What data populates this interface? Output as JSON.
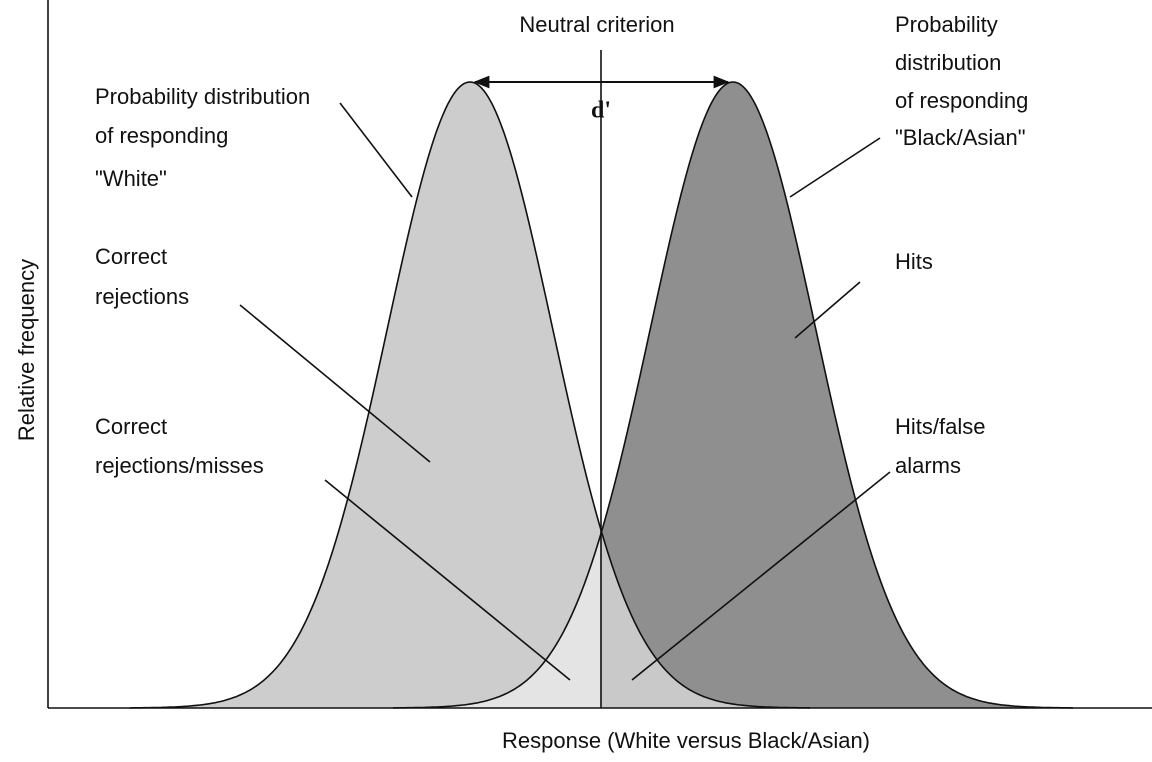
{
  "title": "Neutral criterion",
  "d_prime": "d'",
  "y_axis_label": "Relative frequency",
  "x_axis_label": "Response (White versus Black/Asian)",
  "annotations": [
    {
      "lines": [
        "Probability distribution",
        "of responding",
        "\"White\""
      ]
    },
    {
      "lines": [
        "Correct",
        "rejections"
      ]
    },
    {
      "lines": [
        "Correct",
        "rejections/misses"
      ]
    },
    {
      "lines": [
        "Probability",
        "distribution",
        "of responding",
        "\"Black/Asian\""
      ]
    },
    {
      "lines": [
        "Hits"
      ]
    },
    {
      "lines": [
        "Hits/false",
        "alarms"
      ]
    }
  ]
}
